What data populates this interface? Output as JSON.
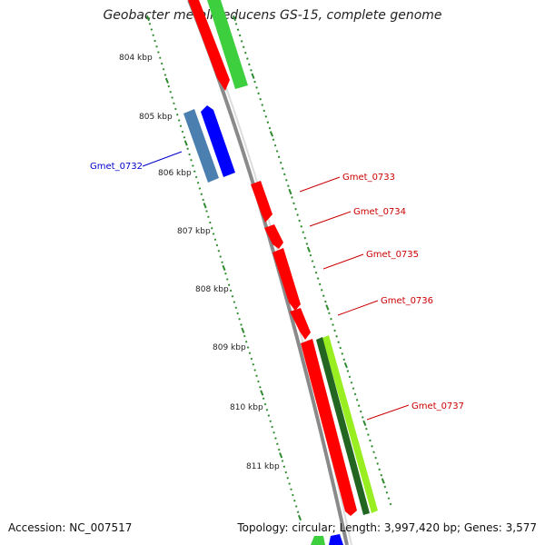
{
  "title": "Geobacter metallireducens GS-15, complete genome",
  "footer": {
    "accession": "Accession: NC_007517",
    "summary": "Topology: circular; Length: 3,997,420 bp; Genes: 3,577"
  },
  "ruler": {
    "ticks": [
      "804 kbp",
      "805 kbp",
      "806 kbp",
      "807 kbp",
      "808 kbp",
      "809 kbp",
      "810 kbp",
      "811 kbp"
    ]
  },
  "genes": [
    {
      "name": "Gmet_0732",
      "color": "#0000cc",
      "strand": "reverse"
    },
    {
      "name": "Gmet_0733",
      "color": "#cc0000",
      "strand": "forward"
    },
    {
      "name": "Gmet_0734",
      "color": "#cc0000",
      "strand": "forward"
    },
    {
      "name": "Gmet_0735",
      "color": "#cc0000",
      "strand": "forward"
    },
    {
      "name": "Gmet_0736",
      "color": "#cc0000",
      "strand": "forward"
    },
    {
      "name": "Gmet_0737",
      "color": "#cc0000",
      "strand": "forward"
    }
  ],
  "colors": {
    "backbone": "#8a8a8a",
    "cds": "#ff0000",
    "cds_reverse": "#0000ff",
    "gc_content": "#3dcf3d",
    "gc_skew_pos": "#99ee22",
    "gc_skew_neg": "#226622",
    "blue_feature": "#4a7fb0",
    "tick": "#2e8b2e"
  }
}
